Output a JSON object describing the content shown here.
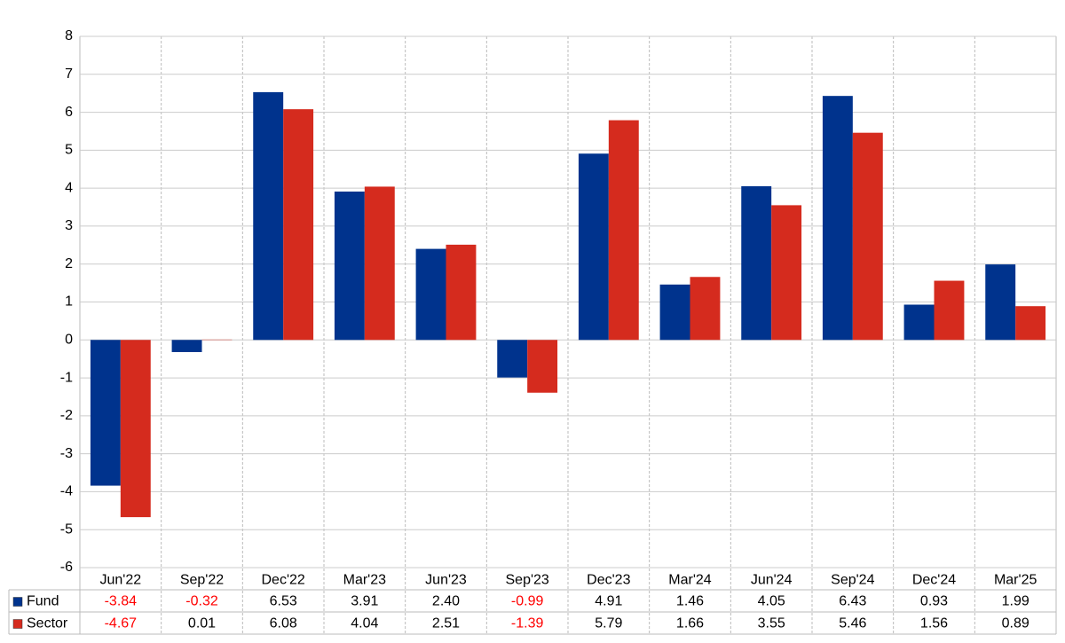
{
  "chart_data": {
    "type": "bar",
    "categories": [
      "Jun'22",
      "Sep'22",
      "Dec'22",
      "Mar'23",
      "Jun'23",
      "Sep'23",
      "Dec'23",
      "Mar'24",
      "Jun'24",
      "Sep'24",
      "Dec'24",
      "Mar'25"
    ],
    "series": [
      {
        "name": "Fund",
        "color": "#00338d",
        "values": [
          -3.84,
          -0.32,
          6.53,
          3.91,
          2.4,
          -0.99,
          4.91,
          1.46,
          4.05,
          6.43,
          0.93,
          1.99
        ],
        "value_labels": [
          "-3.84",
          "-0.32",
          "6.53",
          "3.91",
          "2.40",
          "-0.99",
          "4.91",
          "1.46",
          "4.05",
          "6.43",
          "0.93",
          "1.99"
        ]
      },
      {
        "name": "Sector",
        "color": "#d52b1e",
        "values": [
          -4.67,
          0.01,
          6.08,
          4.04,
          2.51,
          -1.39,
          5.79,
          1.66,
          3.55,
          5.46,
          1.56,
          0.89
        ],
        "value_labels": [
          "-4.67",
          "0.01",
          "6.08",
          "4.04",
          "2.51",
          "-1.39",
          "5.79",
          "1.66",
          "3.55",
          "5.46",
          "1.56",
          "0.89"
        ]
      }
    ],
    "ylim": [
      -6,
      8
    ],
    "yticks": [
      -6,
      -5,
      -4,
      -3,
      -2,
      -1,
      0,
      1,
      2,
      3,
      4,
      5,
      6,
      7,
      8
    ],
    "grid": true,
    "negative_label_color": "#ff0000"
  }
}
